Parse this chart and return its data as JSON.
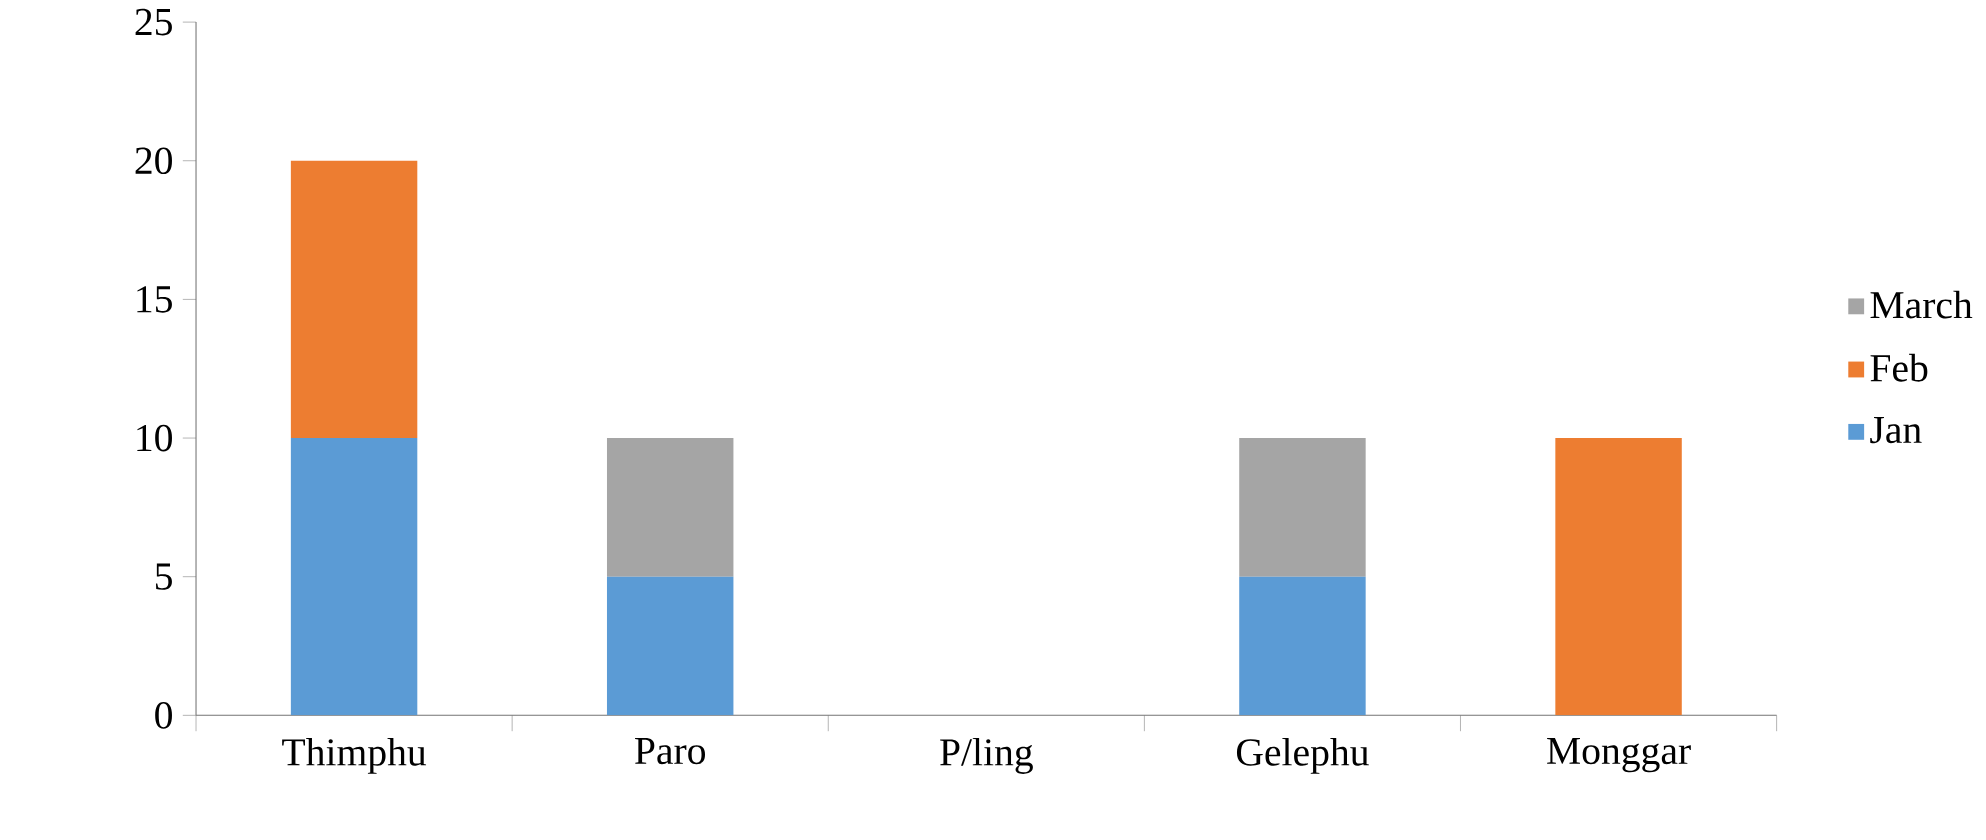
{
  "chart_data": {
    "type": "bar",
    "stacked": true,
    "categories": [
      "Thimphu",
      "Paro",
      "P/ling",
      "Gelephu",
      "Monggar"
    ],
    "series": [
      {
        "name": "Jan",
        "color": "#5b9bd5",
        "values": [
          10,
          5,
          0,
          5,
          0
        ]
      },
      {
        "name": "Feb",
        "color": "#ed7d31",
        "values": [
          10,
          0,
          0,
          0,
          10
        ]
      },
      {
        "name": "March",
        "color": "#a5a5a5",
        "values": [
          0,
          5,
          0,
          5,
          0
        ]
      }
    ],
    "ylim": [
      0,
      25
    ],
    "yticks": [
      0,
      5,
      10,
      15,
      20,
      25
    ],
    "legend": "right"
  }
}
